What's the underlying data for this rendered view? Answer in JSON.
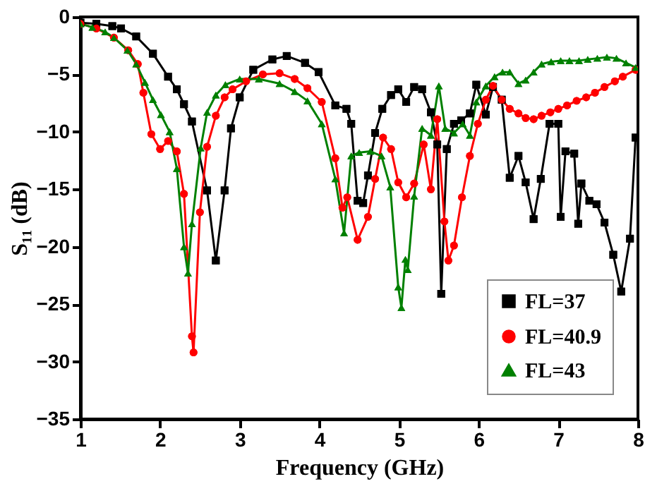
{
  "chart_data": {
    "type": "line",
    "xlabel": "Frequency (GHz)",
    "ylabel": "S₁₁ (dB)",
    "xlim": [
      1,
      8
    ],
    "xticks": [
      1,
      2,
      3,
      4,
      5,
      6,
      7,
      8
    ],
    "ylim": [
      -35,
      0
    ],
    "yticks": [
      -35,
      -30,
      -25,
      -20,
      -15,
      -10,
      -5,
      0
    ],
    "grid": false,
    "legend": "bottom right",
    "line_style": "solid",
    "series": [
      {
        "name": "FL=37",
        "color": "#000000",
        "marker": "square",
        "x": [
          1.0,
          1.2,
          1.4,
          1.51,
          1.7,
          1.91,
          2.1,
          2.21,
          2.3,
          2.4,
          2.59,
          2.7,
          2.81,
          2.89,
          3.0,
          3.17,
          3.41,
          3.59,
          3.82,
          3.99,
          4.2,
          4.34,
          4.4,
          4.48,
          4.55,
          4.61,
          4.7,
          4.79,
          4.9,
          4.99,
          5.09,
          5.19,
          5.29,
          5.4,
          5.48,
          5.53,
          5.6,
          5.69,
          5.78,
          5.89,
          5.97,
          6.09,
          6.18,
          6.29,
          6.39,
          6.5,
          6.59,
          6.69,
          6.78,
          6.89,
          7.0,
          7.03,
          7.09,
          7.2,
          7.25,
          7.29,
          7.39,
          7.48,
          7.58,
          7.69,
          7.79,
          7.9,
          7.97
        ],
        "values": [
          -0.5,
          -0.6,
          -0.8,
          -1.0,
          -1.7,
          -3.2,
          -5.2,
          -6.3,
          -7.6,
          -9.1,
          -15.1,
          -21.2,
          -15.1,
          -9.7,
          -7.0,
          -4.6,
          -3.7,
          -3.4,
          -4.0,
          -4.8,
          -7.7,
          -8.0,
          -9.3,
          -16.0,
          -16.2,
          -13.8,
          -10.1,
          -8.0,
          -6.8,
          -6.3,
          -7.4,
          -6.1,
          -6.3,
          -8.3,
          -11.1,
          -24.1,
          -11.5,
          -9.3,
          -9.0,
          -8.4,
          -5.9,
          -8.5,
          -6.1,
          -7.2,
          -14.0,
          -12.1,
          -14.4,
          -17.6,
          -14.1,
          -9.3,
          -9.3,
          -17.4,
          -11.7,
          -11.9,
          -18.0,
          -14.5,
          -16.0,
          -16.3,
          -17.9,
          -20.7,
          -23.9,
          -19.3,
          -10.5
        ]
      },
      {
        "name": "FL=40.9",
        "color": "#ff0000",
        "marker": "circle",
        "x": [
          1.0,
          1.2,
          1.42,
          1.6,
          1.72,
          1.79,
          1.89,
          2.0,
          2.1,
          2.21,
          2.3,
          2.4,
          2.42,
          2.5,
          2.59,
          2.7,
          2.81,
          2.91,
          3.08,
          3.29,
          3.5,
          3.69,
          3.85,
          4.03,
          4.2,
          4.29,
          4.35,
          4.48,
          4.61,
          4.7,
          4.8,
          4.9,
          4.99,
          5.09,
          5.19,
          5.31,
          5.4,
          5.48,
          5.57,
          5.62,
          5.69,
          5.79,
          5.89,
          5.99,
          6.09,
          6.18,
          6.29,
          6.39,
          6.5,
          6.59,
          6.69,
          6.79,
          6.9,
          7.0,
          7.11,
          7.23,
          7.35,
          7.46,
          7.58,
          7.71,
          7.81,
          7.97
        ],
        "values": [
          -0.6,
          -1.0,
          -1.8,
          -2.9,
          -4.1,
          -6.6,
          -10.2,
          -11.5,
          -10.8,
          -11.7,
          -15.4,
          -27.8,
          -29.2,
          -17.0,
          -11.3,
          -8.6,
          -7.0,
          -6.3,
          -5.6,
          -5.0,
          -4.9,
          -5.4,
          -6.2,
          -7.4,
          -12.3,
          -16.6,
          -15.7,
          -19.4,
          -17.4,
          -14.1,
          -10.5,
          -11.5,
          -14.4,
          -15.7,
          -14.5,
          -11.1,
          -15.0,
          -8.9,
          -17.8,
          -21.2,
          -19.9,
          -15.7,
          -12.1,
          -9.3,
          -7.2,
          -6.0,
          -7.2,
          -8.0,
          -8.4,
          -8.8,
          -8.9,
          -8.6,
          -8.3,
          -8.0,
          -7.7,
          -7.3,
          -7.0,
          -6.6,
          -6.1,
          -5.6,
          -5.2,
          -4.6
        ]
      },
      {
        "name": "FL=43",
        "color": "#008000",
        "marker": "triangle",
        "x": [
          1.0,
          1.15,
          1.31,
          1.42,
          1.59,
          1.7,
          1.81,
          1.91,
          2.01,
          2.12,
          2.21,
          2.3,
          2.35,
          2.4,
          2.51,
          2.59,
          2.7,
          2.82,
          3.0,
          3.24,
          3.5,
          3.69,
          3.85,
          4.03,
          4.2,
          4.31,
          4.4,
          4.5,
          4.64,
          4.78,
          4.89,
          4.99,
          5.03,
          5.08,
          5.11,
          5.19,
          5.29,
          5.4,
          5.5,
          5.58,
          5.69,
          5.8,
          5.89,
          5.97,
          6.09,
          6.2,
          6.3,
          6.39,
          6.5,
          6.59,
          6.69,
          6.79,
          6.91,
          7.03,
          7.14,
          7.26,
          7.37,
          7.49,
          7.61,
          7.73,
          7.85,
          7.97
        ],
        "values": [
          -0.6,
          -0.9,
          -1.3,
          -1.8,
          -2.9,
          -4.1,
          -5.7,
          -7.2,
          -8.5,
          -10.0,
          -13.2,
          -20.0,
          -22.3,
          -18.0,
          -11.4,
          -8.3,
          -6.8,
          -5.9,
          -5.4,
          -5.4,
          -5.8,
          -6.5,
          -7.3,
          -9.3,
          -14.1,
          -18.8,
          -12.1,
          -11.8,
          -11.7,
          -12.1,
          -14.8,
          -23.5,
          -25.3,
          -21.1,
          -22.0,
          -15.6,
          -9.7,
          -10.3,
          -6.0,
          -9.7,
          -10.1,
          -9.3,
          -10.3,
          -7.4,
          -6.0,
          -5.2,
          -4.8,
          -4.8,
          -5.8,
          -5.5,
          -4.8,
          -4.1,
          -3.9,
          -3.8,
          -3.8,
          -3.8,
          -3.7,
          -3.6,
          -3.5,
          -3.6,
          -4.0,
          -4.4
        ]
      }
    ]
  }
}
